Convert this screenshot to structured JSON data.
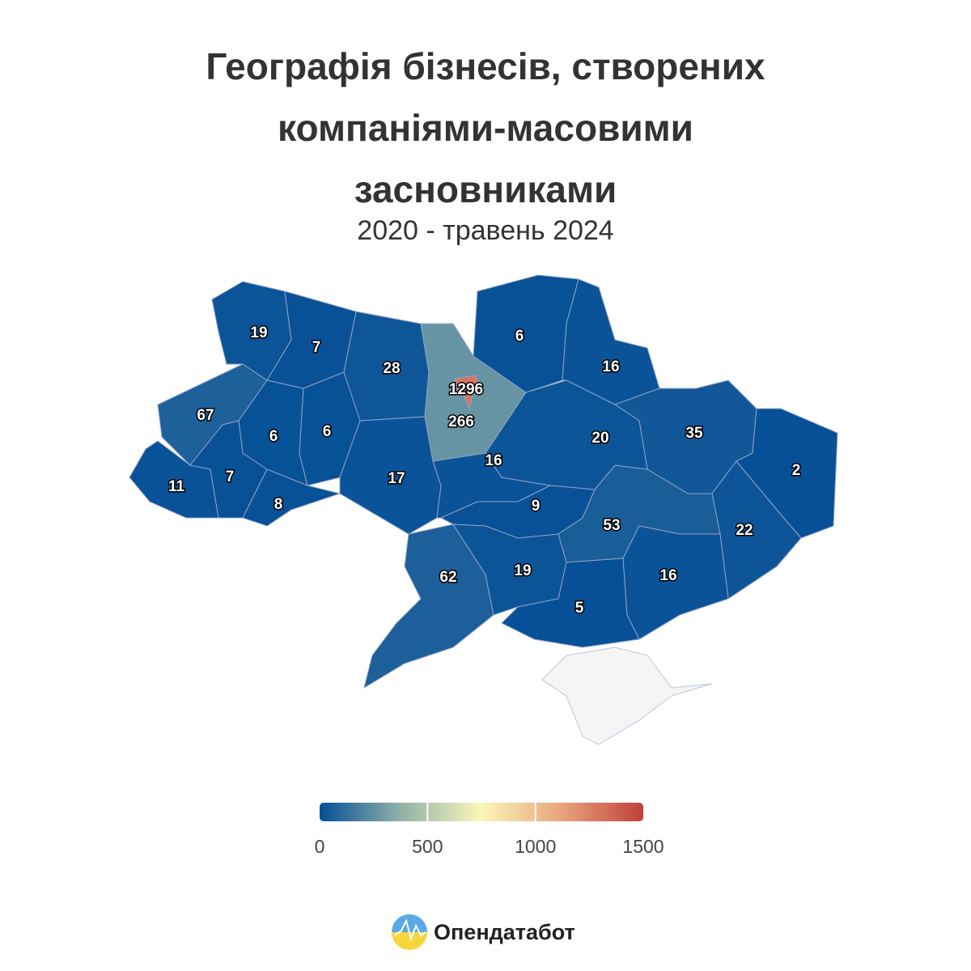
{
  "chart_data": {
    "type": "choropleth",
    "title": "Географія бізнесів, створених компаніями-масовими засновниками",
    "subtitle": "2020 - травень 2024",
    "values": [
      19,
      7,
      28,
      1296,
      266,
      6,
      16,
      35,
      2,
      67,
      6,
      6,
      17,
      16,
      20,
      11,
      7,
      8,
      9,
      53,
      22,
      62,
      19,
      5,
      16
    ],
    "colorscale": [
      "#054f97",
      "#8fb0a8",
      "#fbf7b8",
      "#e8a27c",
      "#c1403a"
    ],
    "clim": [
      0,
      1500
    ],
    "cticks": [
      0,
      500,
      1000,
      1500
    ]
  },
  "logo": "Опендатабот"
}
